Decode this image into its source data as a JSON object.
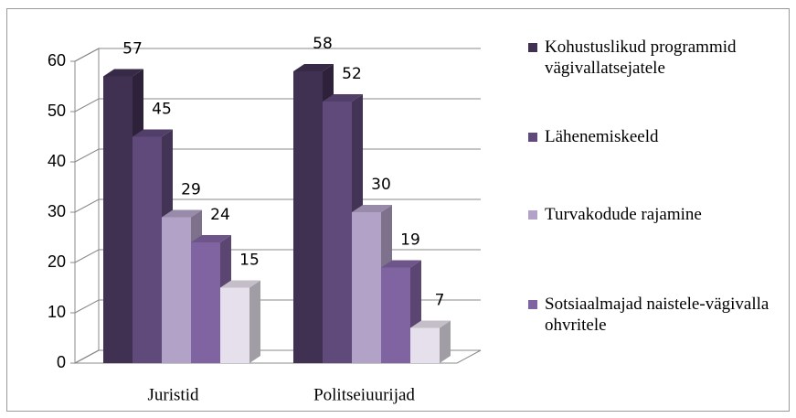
{
  "chart_data": {
    "type": "bar3d",
    "categories": [
      "Juristid",
      "Politseiuurijad"
    ],
    "series": [
      {
        "name": "Kohustuslikud programmid vägivallatsejatele",
        "color": "#403152",
        "values": [
          57,
          58
        ]
      },
      {
        "name": "Lähenemiskeeld",
        "color": "#604a7b",
        "values": [
          45,
          52
        ]
      },
      {
        "name": "Turvakodude rajamine",
        "color": "#b3a2c7",
        "values": [
          29,
          30
        ]
      },
      {
        "name": "Sotsiaalmajad naistele-vägivalla ohvritele",
        "color": "#8064a2",
        "values": [
          24,
          19
        ]
      },
      {
        "color": "#e6e0ec",
        "values": [
          15,
          7
        ]
      }
    ],
    "ylim": [
      0,
      60
    ],
    "yticks": [
      0,
      10,
      20,
      30,
      40,
      50,
      60
    ],
    "grid": true,
    "data_labels": true,
    "legend": "right"
  }
}
